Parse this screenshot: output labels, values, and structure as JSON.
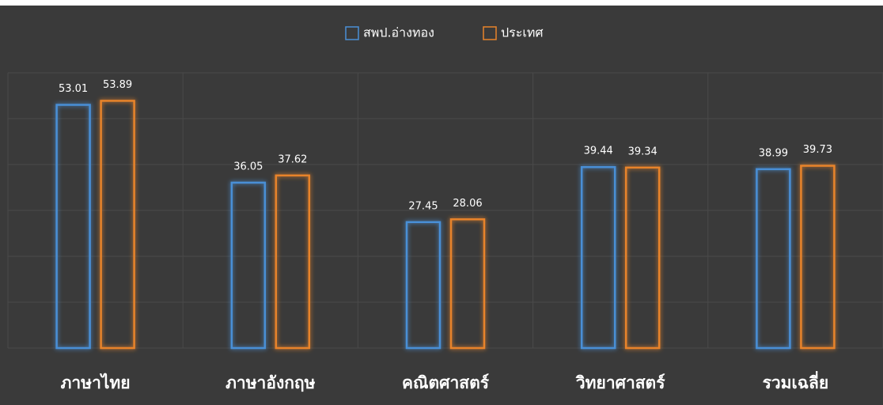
{
  "chart_data": {
    "type": "bar",
    "categories": [
      "ภาษาไทย",
      "ภาษาอังกฤษ",
      "คณิตศาสตร์",
      "วิทยาศาสตร์",
      "รวมเฉลี่ย"
    ],
    "series": [
      {
        "name": "สพป.อ่างทอง",
        "color": "#4a8fd6",
        "values": [
          53.01,
          36.05,
          27.45,
          39.44,
          38.99
        ]
      },
      {
        "name": "ประเทศ",
        "color": "#e8832a",
        "values": [
          53.89,
          37.62,
          28.06,
          39.34,
          39.73
        ]
      }
    ],
    "ylim": [
      0,
      60
    ],
    "yticks": [
      0,
      10,
      20,
      30,
      40,
      50,
      60
    ],
    "grid": true,
    "legend": "top"
  }
}
